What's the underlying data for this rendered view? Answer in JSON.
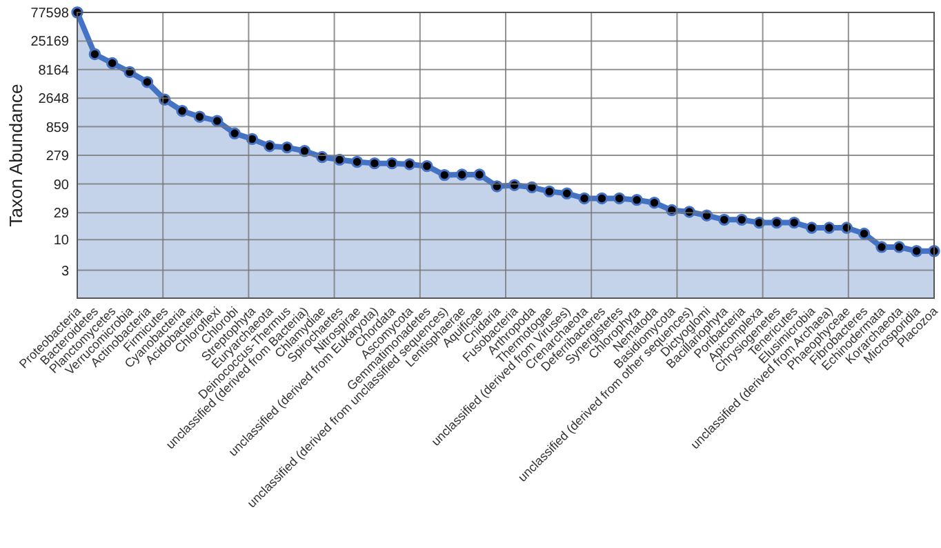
{
  "chart_data": {
    "type": "area",
    "ylabel": "Taxon Abundance",
    "log": true,
    "grid": true,
    "marker": "circle",
    "line_style": "solid",
    "ylim": [
      1,
      77598
    ],
    "yticks": [
      3,
      10,
      29,
      90,
      279,
      859,
      2648,
      8164,
      25169,
      77598
    ],
    "categories": [
      "Proteobacteria",
      "Bacteroidetes",
      "Planctomycetes",
      "Verrucomicrobia",
      "Actinobacteria",
      "Firmicutes",
      "Cyanobacteria",
      "Acidobacteria",
      "Chloroflexi",
      "Chlorobi",
      "Streptophyta",
      "Euryarchaeota",
      "Deinococcus-Thermus",
      "unclassified (derived from Bacteria)",
      "Chlamydiae",
      "Spirochaetes",
      "Nitrospirae",
      "unclassified (derived from Eukaryota)",
      "Chordata",
      "Ascomycota",
      "Gemmatimonadetes",
      "unclassified (derived from unclassified sequences)",
      "Lentisphaerae",
      "Aquificae",
      "Cnidaria",
      "Fusobacteria",
      "Arthropoda",
      "Thermotogae",
      "unclassified (derived from Viruses)",
      "Crenarchaeota",
      "Deferribacteres",
      "Synergistetes",
      "Chlorophyta",
      "Nematoda",
      "Basidiomycota",
      "unclassified (derived from other sequences)",
      "Dictyoglomi",
      "Bacillariophyta",
      "Poribacteria",
      "Apicomplexa",
      "Chrysiogenetes",
      "Tenericutes",
      "Elusimicrobia",
      "unclassified (derived from Archaea)",
      "Phaeophyceae",
      "Fibrobacteres",
      "Echinodermata",
      "Korarchaeota",
      "Microsporidia",
      "Placozoa"
    ],
    "series": [
      {
        "color": "#4472c4",
        "values": [
          77598,
          15000,
          10500,
          7400,
          5000,
          2500,
          1600,
          1270,
          1080,
          660,
          530,
          400,
          380,
          330,
          260,
          234,
          215,
          203,
          203,
          196,
          182,
          128,
          130,
          130,
          82,
          86,
          79,
          67,
          62,
          51,
          51,
          51,
          48,
          43,
          32,
          30,
          26,
          22,
          22,
          19.6,
          19.6,
          19.6,
          16,
          16,
          16,
          12.7,
          7.5,
          7.5,
          6.4,
          6.4
        ]
      }
    ]
  }
}
